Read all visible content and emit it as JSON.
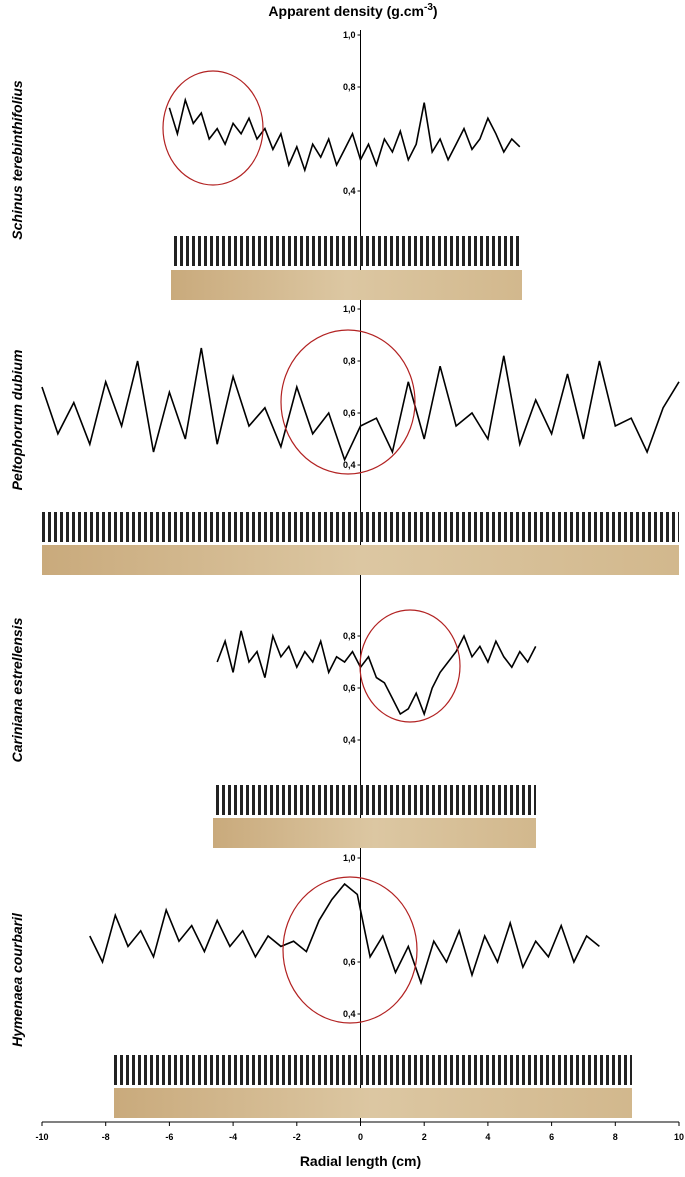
{
  "chart_data": [
    {
      "type": "line",
      "title": "Schinus terebinthifolius",
      "ylabel": [
        "Apparent density (g.cm",
        "-3",
        ")"
      ],
      "color": "#000000",
      "xlim": [
        -10,
        10
      ],
      "ylim": [
        0.4,
        1.0
      ],
      "yticks": [
        {
          "value": 1.0,
          "label": "1,0"
        },
        {
          "value": 0.8,
          "label": "0,8"
        },
        {
          "value": 0.4,
          "label": "0,4"
        }
      ],
      "x": [
        -6,
        -5.75,
        -5.5,
        -5.25,
        -5,
        -4.75,
        -4.5,
        -4.25,
        -4,
        -3.75,
        -3.5,
        -3.25,
        -3,
        -2.75,
        -2.5,
        -2.25,
        -2,
        -1.75,
        -1.5,
        -1.25,
        -1,
        -0.75,
        -0.5,
        -0.25,
        0,
        0.25,
        0.5,
        0.75,
        1,
        1.25,
        1.5,
        1.75,
        2,
        2.25,
        2.5,
        2.75,
        3,
        3.25,
        3.5,
        3.75,
        4,
        4.25,
        4.5,
        4.75,
        5
      ],
      "values": [
        0.72,
        0.62,
        0.75,
        0.66,
        0.7,
        0.6,
        0.64,
        0.58,
        0.66,
        0.62,
        0.68,
        0.6,
        0.64,
        0.56,
        0.62,
        0.5,
        0.57,
        0.48,
        0.58,
        0.53,
        0.6,
        0.5,
        0.56,
        0.62,
        0.52,
        0.58,
        0.5,
        0.6,
        0.55,
        0.63,
        0.52,
        0.58,
        0.74,
        0.55,
        0.6,
        0.52,
        0.58,
        0.64,
        0.56,
        0.6,
        0.68,
        0.62,
        0.55,
        0.6,
        0.57
      ]
    },
    {
      "type": "line",
      "title": "Peltophorum dubium",
      "color": "#000000",
      "xlim": [
        -10,
        10
      ],
      "ylim": [
        0.4,
        1.0
      ],
      "yticks": [
        {
          "value": 1.0,
          "label": "1,0"
        },
        {
          "value": 0.8,
          "label": "0,8"
        },
        {
          "value": 0.6,
          "label": "0,6"
        },
        {
          "value": 0.4,
          "label": "0,4"
        }
      ],
      "x": [
        -10,
        -9.5,
        -9,
        -8.5,
        -8,
        -7.5,
        -7,
        -6.5,
        -6,
        -5.5,
        -5,
        -4.5,
        -4,
        -3.5,
        -3,
        -2.5,
        -2,
        -1.5,
        -1,
        -0.5,
        0,
        0.5,
        1,
        1.5,
        2,
        2.5,
        3,
        3.5,
        4,
        4.5,
        5,
        5.5,
        6,
        6.5,
        7,
        7.5,
        8,
        8.5,
        9,
        9.5,
        10
      ],
      "values": [
        0.7,
        0.52,
        0.64,
        0.48,
        0.72,
        0.55,
        0.8,
        0.45,
        0.68,
        0.5,
        0.85,
        0.48,
        0.74,
        0.55,
        0.62,
        0.47,
        0.7,
        0.52,
        0.6,
        0.42,
        0.55,
        0.58,
        0.45,
        0.72,
        0.5,
        0.78,
        0.55,
        0.6,
        0.5,
        0.82,
        0.48,
        0.65,
        0.52,
        0.75,
        0.5,
        0.8,
        0.55,
        0.58,
        0.45,
        0.62,
        0.72
      ]
    },
    {
      "type": "line",
      "title": "Cariniana estrellensis",
      "color": "#000000",
      "xlim": [
        -10,
        10
      ],
      "ylim": [
        0.4,
        1.0
      ],
      "yticks": [
        {
          "value": 0.8,
          "label": "0,8"
        },
        {
          "value": 0.6,
          "label": "0,6"
        },
        {
          "value": 0.4,
          "label": "0,4"
        }
      ],
      "x": [
        -4.5,
        -4.25,
        -4,
        -3.75,
        -3.5,
        -3.25,
        -3,
        -2.75,
        -2.5,
        -2.25,
        -2,
        -1.75,
        -1.5,
        -1.25,
        -1,
        -0.75,
        -0.5,
        -0.25,
        0,
        0.25,
        0.5,
        0.75,
        1,
        1.25,
        1.5,
        1.75,
        2,
        2.25,
        2.5,
        2.75,
        3,
        3.25,
        3.5,
        3.75,
        4,
        4.25,
        4.5,
        4.75,
        5,
        5.25,
        5.5
      ],
      "values": [
        0.7,
        0.78,
        0.66,
        0.82,
        0.7,
        0.74,
        0.64,
        0.8,
        0.72,
        0.76,
        0.68,
        0.74,
        0.7,
        0.78,
        0.66,
        0.72,
        0.7,
        0.74,
        0.68,
        0.72,
        0.64,
        0.62,
        0.56,
        0.5,
        0.52,
        0.58,
        0.5,
        0.6,
        0.66,
        0.7,
        0.74,
        0.8,
        0.72,
        0.76,
        0.7,
        0.78,
        0.72,
        0.68,
        0.74,
        0.7,
        0.76
      ]
    },
    {
      "type": "line",
      "title": "Hymenaea courbaril",
      "color": "#000000",
      "xlim": [
        -10,
        10
      ],
      "ylim": [
        0.4,
        1.0
      ],
      "yticks": [
        {
          "value": 1.0,
          "label": "1,0"
        },
        {
          "value": 0.6,
          "label": "0,6"
        },
        {
          "value": 0.4,
          "label": "0,4"
        }
      ],
      "xlabel": "Radial length (cm)",
      "xticks": [
        -10,
        -8,
        -6,
        -4,
        -2,
        0,
        2,
        4,
        6,
        8,
        10
      ],
      "x": [
        -8.5,
        -8.1,
        -7.7,
        -7.3,
        -6.9,
        -6.5,
        -6.1,
        -5.7,
        -5.3,
        -4.9,
        -4.5,
        -4.1,
        -3.7,
        -3.3,
        -2.9,
        -2.5,
        -2.1,
        -1.7,
        -1.3,
        -0.9,
        -0.5,
        -0.1,
        0.3,
        0.7,
        1.1,
        1.5,
        1.9,
        2.3,
        2.7,
        3.1,
        3.5,
        3.9,
        4.3,
        4.7,
        5.1,
        5.5,
        5.9,
        6.3,
        6.7,
        7.1,
        7.5
      ],
      "values": [
        0.7,
        0.6,
        0.78,
        0.66,
        0.72,
        0.62,
        0.8,
        0.68,
        0.74,
        0.64,
        0.76,
        0.66,
        0.72,
        0.62,
        0.7,
        0.66,
        0.68,
        0.64,
        0.76,
        0.84,
        0.9,
        0.86,
        0.62,
        0.7,
        0.56,
        0.66,
        0.52,
        0.68,
        0.6,
        0.72,
        0.55,
        0.7,
        0.6,
        0.75,
        0.58,
        0.68,
        0.62,
        0.74,
        0.6,
        0.7,
        0.66
      ]
    }
  ]
}
